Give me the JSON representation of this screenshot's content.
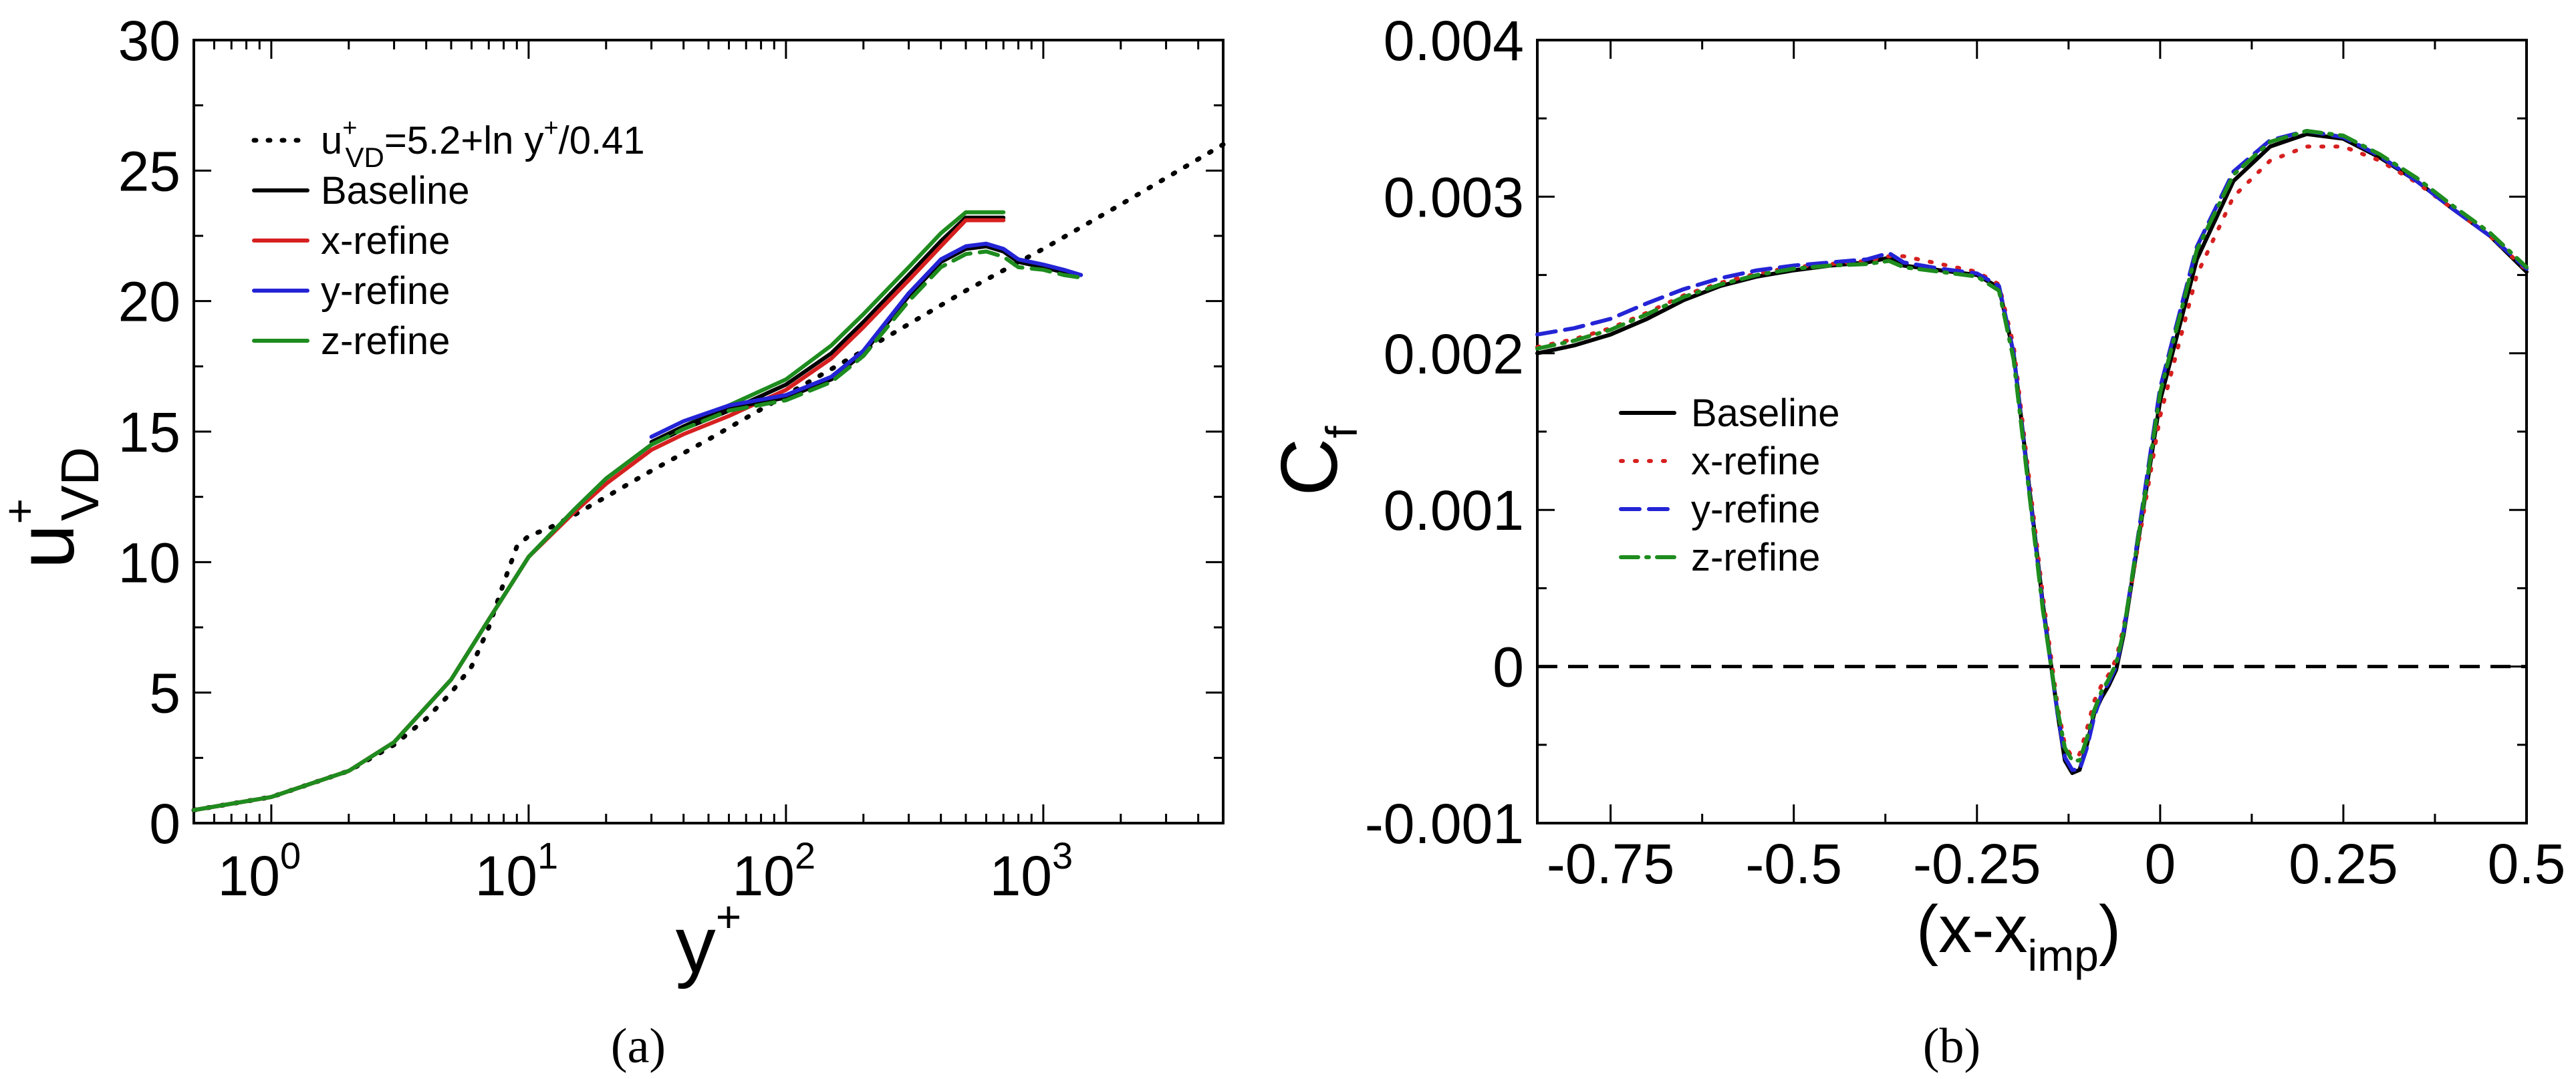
{
  "chart_data": [
    {
      "id": "a",
      "panel_label": "(a)",
      "type": "line",
      "xscale": "log",
      "xlim": [
        0.5,
        5000
      ],
      "ylim": [
        0,
        30
      ],
      "xlabel": "y+",
      "ylabel": "u+VD",
      "yticks": [
        0,
        5,
        10,
        15,
        20,
        25,
        30
      ],
      "ytick_labels": [
        "0",
        "5",
        "10",
        "15",
        "20",
        "25",
        "30"
      ],
      "xticks": [
        1,
        10,
        100,
        1000
      ],
      "xtick_labels": [
        "10",
        "10",
        "10",
        "10"
      ],
      "xtick_exponents": [
        "0",
        "1",
        "2",
        "3"
      ],
      "legend_position": "top-left",
      "legend_entries": [
        {
          "label": "u+VD=5.2+ln y+/0.41",
          "color": "#000000",
          "dash": "dot"
        },
        {
          "label": "Baseline",
          "color": "#000000",
          "dash": "solid"
        },
        {
          "label": "x-refine",
          "color": "#d62020",
          "dash": "solid"
        },
        {
          "label": "y-refine",
          "color": "#2424d6",
          "dash": "solid"
        },
        {
          "label": "z-refine",
          "color": "#1e8c1e",
          "dash": "solid"
        }
      ],
      "series": [
        {
          "name": "log-law",
          "color": "#000000",
          "dash": "dot",
          "x": [
            0.5,
            1,
            2,
            3,
            4,
            5,
            6,
            7,
            8,
            9,
            10,
            12,
            15,
            20,
            30,
            50,
            100,
            200,
            500,
            1000,
            2000,
            5000
          ],
          "y": [
            0.5,
            1.0,
            2.0,
            3.0,
            4.0,
            5.0,
            6.0,
            7.5,
            9.2,
            10.6,
            11.0,
            11.3,
            11.8,
            12.5,
            13.5,
            14.7,
            16.4,
            18.1,
            20.4,
            22.0,
            23.7,
            26.0
          ]
        },
        {
          "name": "Baseline (upper)",
          "color": "#000000",
          "dash": "solid",
          "x": [
            0.5,
            1,
            2,
            3,
            5,
            7,
            10,
            15,
            20,
            30,
            40,
            60,
            100,
            150,
            200,
            300,
            400,
            500,
            700
          ],
          "y": [
            0.5,
            1.0,
            2.0,
            3.1,
            5.5,
            7.8,
            10.2,
            12.0,
            13.2,
            14.5,
            15.1,
            15.8,
            16.8,
            18.0,
            19.2,
            21.0,
            22.3,
            23.2,
            23.2
          ]
        },
        {
          "name": "x-refine (upper)",
          "color": "#d62020",
          "dash": "solid",
          "x": [
            0.5,
            1,
            2,
            3,
            5,
            7,
            10,
            15,
            20,
            30,
            40,
            60,
            100,
            150,
            200,
            300,
            400,
            500,
            700
          ],
          "y": [
            0.5,
            1.0,
            2.0,
            3.1,
            5.5,
            7.8,
            10.2,
            11.9,
            13.0,
            14.3,
            14.9,
            15.6,
            16.6,
            17.8,
            19.0,
            20.8,
            22.1,
            23.1,
            23.1
          ]
        },
        {
          "name": "z-refine (upper)",
          "color": "#1e8c1e",
          "dash": "solid",
          "x": [
            0.5,
            1,
            2,
            3,
            5,
            7,
            10,
            15,
            20,
            30,
            40,
            60,
            100,
            150,
            200,
            300,
            400,
            500,
            700
          ],
          "y": [
            0.5,
            1.0,
            2.0,
            3.1,
            5.5,
            7.8,
            10.2,
            12.0,
            13.2,
            14.5,
            15.2,
            16.0,
            17.0,
            18.3,
            19.5,
            21.3,
            22.6,
            23.4,
            23.4
          ]
        },
        {
          "name": "Baseline (lower)",
          "color": "#000000",
          "dash": "solid",
          "x": [
            30,
            40,
            60,
            100,
            150,
            200,
            300,
            400,
            500,
            600,
            700,
            800,
            1000,
            1200,
            1400
          ],
          "y": [
            14.6,
            15.2,
            15.9,
            16.3,
            17.0,
            18.0,
            20.2,
            21.5,
            22.0,
            22.1,
            21.9,
            21.5,
            21.3,
            21.1,
            21.0
          ]
        },
        {
          "name": "y-refine (lower)",
          "color": "#2424d6",
          "dash": "solid",
          "x": [
            30,
            40,
            60,
            100,
            150,
            200,
            300,
            400,
            500,
            600,
            700,
            800,
            1000,
            1200,
            1400
          ],
          "y": [
            14.8,
            15.4,
            16.0,
            16.4,
            17.1,
            18.1,
            20.3,
            21.6,
            22.1,
            22.2,
            22.0,
            21.6,
            21.4,
            21.2,
            21.0
          ]
        },
        {
          "name": "z-refine (lower)",
          "color": "#1e8c1e",
          "dash": "dashed",
          "x": [
            30,
            40,
            60,
            100,
            150,
            200,
            300,
            400,
            500,
            600,
            700,
            800,
            1000,
            1200,
            1400
          ],
          "y": [
            14.5,
            15.1,
            15.8,
            16.2,
            16.9,
            17.9,
            20.0,
            21.3,
            21.8,
            21.9,
            21.7,
            21.3,
            21.2,
            21.0,
            20.9
          ]
        }
      ]
    },
    {
      "id": "b",
      "panel_label": "(b)",
      "type": "line",
      "xlim": [
        -0.85,
        0.5
      ],
      "ylim": [
        -0.001,
        0.004
      ],
      "xlabel": "(x-ximp)",
      "ylabel": "Cf",
      "yticks": [
        -0.001,
        0,
        0.001,
        0.002,
        0.003,
        0.004
      ],
      "ytick_labels": [
        "-0.001",
        "0",
        "0.001",
        "0.002",
        "0.003",
        "0.004"
      ],
      "xticks": [
        -0.75,
        -0.5,
        -0.25,
        0,
        0.25,
        0.5
      ],
      "xtick_labels": [
        "-0.75",
        "-0.5",
        "-0.25",
        "0",
        "0.25",
        "0.5"
      ],
      "zero_line": 0,
      "legend_position": "center-left",
      "legend_entries": [
        {
          "label": "Baseline",
          "color": "#000000",
          "dash": "solid"
        },
        {
          "label": "x-refine",
          "color": "#d62020",
          "dash": "dot"
        },
        {
          "label": "y-refine",
          "color": "#2424d6",
          "dash": "dashed"
        },
        {
          "label": "z-refine",
          "color": "#1e8c1e",
          "dash": "dashdot"
        }
      ],
      "series": [
        {
          "name": "Baseline",
          "color": "#000000",
          "dash": "solid",
          "x": [
            -0.85,
            -0.8,
            -0.75,
            -0.7,
            -0.65,
            -0.6,
            -0.55,
            -0.5,
            -0.45,
            -0.4,
            -0.37,
            -0.35,
            -0.3,
            -0.25,
            -0.22,
            -0.2,
            -0.18,
            -0.16,
            -0.14,
            -0.13,
            -0.12,
            -0.11,
            -0.1,
            -0.09,
            -0.08,
            -0.07,
            -0.06,
            -0.05,
            -0.04,
            -0.02,
            0,
            0.05,
            0.1,
            0.15,
            0.2,
            0.25,
            0.3,
            0.35,
            0.4,
            0.45,
            0.5
          ],
          "y": [
            0.002,
            0.00205,
            0.00212,
            0.00222,
            0.00234,
            0.00243,
            0.00249,
            0.00253,
            0.00256,
            0.00258,
            0.00261,
            0.00256,
            0.00253,
            0.0025,
            0.00242,
            0.002,
            0.0012,
            0.0004,
            -0.0003,
            -0.0006,
            -0.00068,
            -0.00066,
            -0.0005,
            -0.0003,
            -0.0002,
            -0.00012,
            -2e-05,
            0.0002,
            0.0005,
            0.0011,
            0.0017,
            0.0026,
            0.0031,
            0.00332,
            0.0034,
            0.00337,
            0.00325,
            0.0031,
            0.00292,
            0.00275,
            0.00252
          ]
        },
        {
          "name": "x-refine",
          "color": "#d62020",
          "dash": "dot",
          "x": [
            -0.85,
            -0.8,
            -0.75,
            -0.7,
            -0.65,
            -0.6,
            -0.55,
            -0.5,
            -0.45,
            -0.4,
            -0.37,
            -0.35,
            -0.3,
            -0.25,
            -0.22,
            -0.2,
            -0.18,
            -0.16,
            -0.14,
            -0.13,
            -0.12,
            -0.11,
            -0.1,
            -0.09,
            -0.08,
            -0.07,
            -0.06,
            -0.05,
            -0.04,
            -0.02,
            0,
            0.05,
            0.1,
            0.15,
            0.2,
            0.25,
            0.3,
            0.35,
            0.4,
            0.45,
            0.5
          ],
          "y": [
            0.00204,
            0.00209,
            0.00216,
            0.00226,
            0.00237,
            0.00245,
            0.00251,
            0.00255,
            0.00257,
            0.00259,
            0.00262,
            0.00262,
            0.00257,
            0.00252,
            0.00244,
            0.00205,
            0.00125,
            0.00045,
            -0.00025,
            -0.0005,
            -0.00058,
            -0.00056,
            -0.0004,
            -0.00022,
            -0.00012,
            -5e-05,
            5e-05,
            0.00025,
            0.0005,
            0.00105,
            0.0016,
            0.0025,
            0.003,
            0.00323,
            0.00332,
            0.00332,
            0.00323,
            0.00309,
            0.00292,
            0.00275,
            0.00253
          ]
        },
        {
          "name": "y-refine",
          "color": "#2424d6",
          "dash": "dashed",
          "x": [
            -0.85,
            -0.8,
            -0.75,
            -0.7,
            -0.65,
            -0.6,
            -0.55,
            -0.5,
            -0.45,
            -0.4,
            -0.37,
            -0.35,
            -0.3,
            -0.25,
            -0.22,
            -0.2,
            -0.18,
            -0.16,
            -0.14,
            -0.13,
            -0.12,
            -0.11,
            -0.1,
            -0.09,
            -0.08,
            -0.07,
            -0.06,
            -0.05,
            -0.04,
            -0.02,
            0,
            0.05,
            0.1,
            0.15,
            0.2,
            0.25,
            0.3,
            0.35,
            0.4,
            0.45,
            0.5
          ],
          "y": [
            0.00212,
            0.00216,
            0.00222,
            0.00232,
            0.00241,
            0.00248,
            0.00253,
            0.00256,
            0.00258,
            0.0026,
            0.00264,
            0.00258,
            0.00254,
            0.00251,
            0.00243,
            0.002,
            0.00118,
            0.00038,
            -0.0003,
            -0.00058,
            -0.00066,
            -0.00066,
            -0.00052,
            -0.00032,
            -0.00018,
            -0.0001,
            0.0,
            0.00022,
            0.00052,
            0.00115,
            0.00178,
            0.00268,
            0.00316,
            0.00336,
            0.00342,
            0.00338,
            0.00326,
            0.0031,
            0.00292,
            0.00275,
            0.00254
          ]
        },
        {
          "name": "z-refine",
          "color": "#1e8c1e",
          "dash": "dashdot",
          "x": [
            -0.85,
            -0.8,
            -0.75,
            -0.7,
            -0.65,
            -0.6,
            -0.55,
            -0.5,
            -0.45,
            -0.4,
            -0.37,
            -0.35,
            -0.3,
            -0.25,
            -0.22,
            -0.2,
            -0.18,
            -0.16,
            -0.14,
            -0.13,
            -0.12,
            -0.11,
            -0.1,
            -0.09,
            -0.08,
            -0.07,
            -0.06,
            -0.05,
            -0.04,
            -0.02,
            0,
            0.05,
            0.1,
            0.15,
            0.2,
            0.25,
            0.3,
            0.35,
            0.4,
            0.45,
            0.5
          ],
          "y": [
            0.00203,
            0.00208,
            0.00215,
            0.00225,
            0.00236,
            0.00244,
            0.0025,
            0.00254,
            0.00256,
            0.00257,
            0.00259,
            0.00255,
            0.00252,
            0.00249,
            0.0024,
            0.00196,
            0.00116,
            0.00036,
            -0.00028,
            -0.00052,
            -0.0006,
            -0.0006,
            -0.00046,
            -0.00028,
            -0.00016,
            -8e-05,
            2e-05,
            0.00022,
            0.00052,
            0.00112,
            0.00175,
            0.00266,
            0.00314,
            0.00335,
            0.00342,
            0.00339,
            0.00327,
            0.00312,
            0.00294,
            0.00277,
            0.00255
          ]
        }
      ]
    }
  ]
}
